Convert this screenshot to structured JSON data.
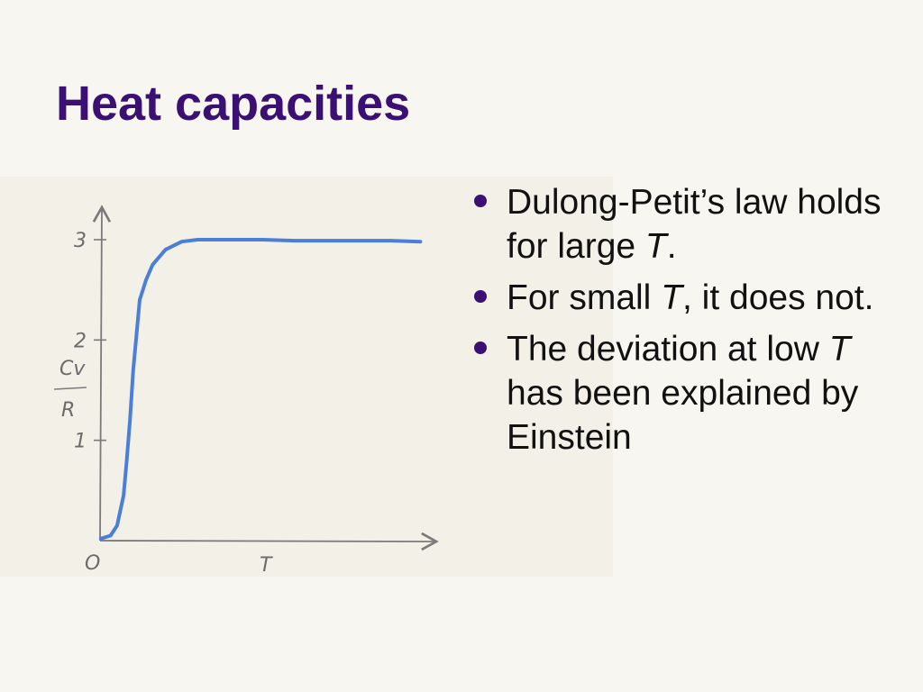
{
  "slide": {
    "title": "Heat capacities"
  },
  "bullets": [
    {
      "parts": [
        {
          "t": "Dulong-Petit’s law holds for large ",
          "i": false
        },
        {
          "t": "T",
          "i": true
        },
        {
          "t": ".",
          "i": false
        }
      ]
    },
    {
      "parts": [
        {
          "t": "For small ",
          "i": false
        },
        {
          "t": "T",
          "i": true
        },
        {
          "t": ", it does not.",
          "i": false
        }
      ]
    },
    {
      "parts": [
        {
          "t": "The deviation at low ",
          "i": false
        },
        {
          "t": "T",
          "i": true
        },
        {
          "t": " has been explained by Einstein",
          "i": false
        }
      ]
    }
  ],
  "colors": {
    "title": "#3a1172",
    "bullet": "#3a1172",
    "curve": "#4a7fd8",
    "axes": "#7a7a7a"
  },
  "chart_data": {
    "type": "line",
    "xlabel": "T",
    "ylabel_numerator": "Cv",
    "ylabel_denominator": "R",
    "origin_label": "O",
    "yticks": [
      "1",
      "2",
      "3"
    ],
    "ylim": [
      0,
      3.3
    ],
    "xlim": [
      0,
      1
    ],
    "series": [
      {
        "x": [
          0,
          0.03,
          0.05,
          0.07,
          0.08,
          0.09,
          0.1,
          0.11,
          0.12,
          0.14,
          0.16,
          0.2,
          0.25,
          0.3,
          0.4,
          0.5,
          0.6,
          0.7,
          0.8,
          0.9,
          0.99
        ],
        "y": [
          0.02,
          0.05,
          0.15,
          0.45,
          0.8,
          1.2,
          1.7,
          2.05,
          2.4,
          2.6,
          2.75,
          2.9,
          2.98,
          3.0,
          3.0,
          3.0,
          2.99,
          2.99,
          2.99,
          2.99,
          2.98
        ]
      }
    ]
  }
}
